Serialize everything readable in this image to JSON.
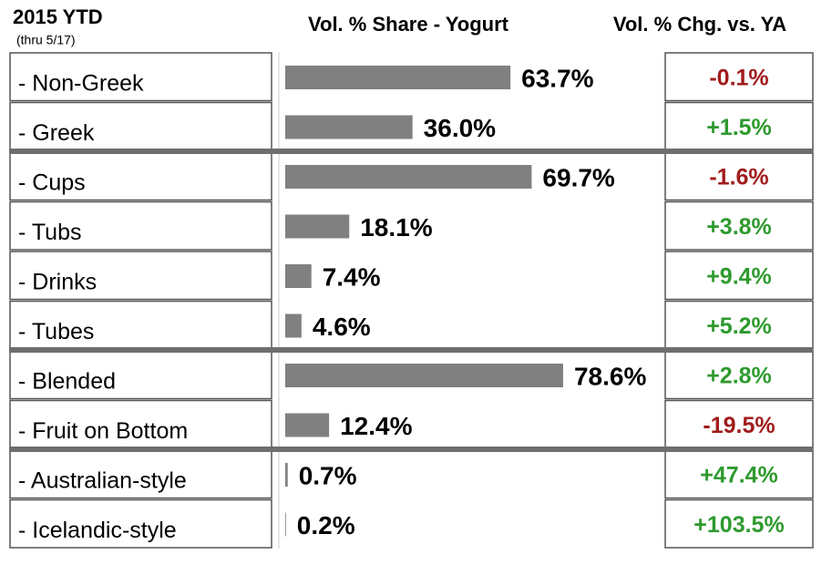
{
  "chart_data": {
    "type": "bar",
    "title": "2015 YTD",
    "subtitle": "(thru 5/17)",
    "categories": [
      "- Non-Greek",
      "- Greek",
      "- Cups",
      "- Tubs",
      "- Drinks",
      "- Tubes",
      "- Blended",
      "- Fruit on Bottom",
      "- Australian-style",
      "- Icelandic-style"
    ],
    "series": [
      {
        "name": "Vol. % Share - Yogurt",
        "color": "#808080",
        "values": [
          63.7,
          36.0,
          69.7,
          18.1,
          7.4,
          4.6,
          78.6,
          12.4,
          0.7,
          0.2
        ],
        "value_labels": [
          "63.7%",
          "36.0%",
          "69.7%",
          "18.1%",
          "7.4%",
          "4.6%",
          "78.6%",
          "12.4%",
          "0.7%",
          "0.2%"
        ]
      },
      {
        "name": "Vol. % Chg. vs. YA",
        "values": [
          -0.1,
          1.5,
          -1.6,
          3.8,
          9.4,
          5.2,
          2.8,
          -19.5,
          47.4,
          103.5
        ],
        "value_labels": [
          "-0.1%",
          "+1.5%",
          "-1.6%",
          "+3.8%",
          "+9.4%",
          "+5.2%",
          "+2.8%",
          "-19.5%",
          "+47.4%",
          "+103.5%"
        ]
      }
    ],
    "positive_color": "#2e9a2e",
    "negative_color": "#a01c1c"
  }
}
